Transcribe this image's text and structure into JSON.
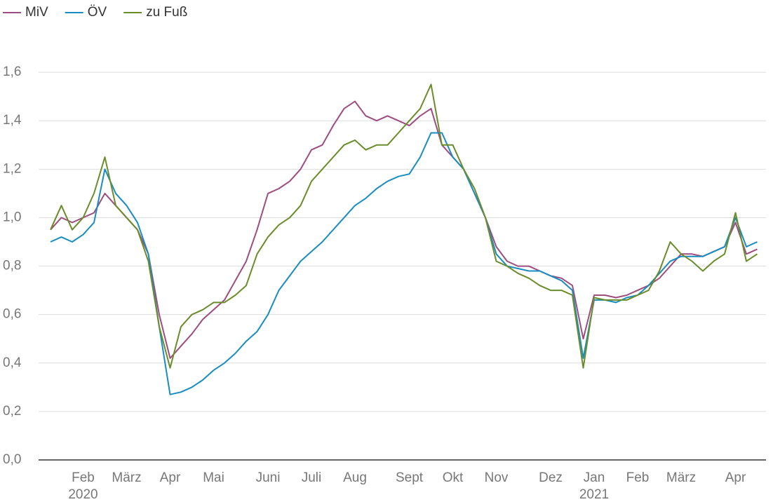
{
  "chart_data": {
    "type": "line",
    "categories": [
      null,
      null,
      null,
      {
        "label": "Feb",
        "year": "2020"
      },
      null,
      null,
      null,
      "März",
      null,
      null,
      null,
      "Apr",
      null,
      null,
      null,
      "Mai",
      null,
      null,
      null,
      null,
      "Juni",
      null,
      null,
      null,
      "Juli",
      null,
      null,
      null,
      "Aug",
      null,
      null,
      null,
      null,
      "Sept",
      null,
      null,
      null,
      "Okt",
      null,
      null,
      null,
      "Nov",
      null,
      null,
      null,
      null,
      "Dez",
      null,
      null,
      null,
      {
        "label": "Jan",
        "year": "2021"
      },
      null,
      null,
      null,
      "Feb",
      null,
      null,
      null,
      "März",
      null,
      null,
      null,
      null,
      "Apr",
      null,
      null
    ],
    "series": [
      {
        "name": "MiV",
        "color": "#9e4d7f",
        "values": [
          0.95,
          1.0,
          0.98,
          1.0,
          1.02,
          1.1,
          1.05,
          1.0,
          0.95,
          0.85,
          0.6,
          0.42,
          0.47,
          0.52,
          0.58,
          0.62,
          0.66,
          0.74,
          0.82,
          0.95,
          1.1,
          1.12,
          1.15,
          1.2,
          1.28,
          1.3,
          1.38,
          1.45,
          1.48,
          1.42,
          1.4,
          1.42,
          1.4,
          1.38,
          1.42,
          1.45,
          1.3,
          1.25,
          1.2,
          1.1,
          1.0,
          0.88,
          0.82,
          0.8,
          0.8,
          0.78,
          0.76,
          0.75,
          0.72,
          0.5,
          0.68,
          0.68,
          0.67,
          0.68,
          0.7,
          0.72,
          0.75,
          0.8,
          0.85,
          0.85,
          0.84,
          0.86,
          0.88,
          0.98,
          0.85,
          0.87
        ]
      },
      {
        "name": "ÖV",
        "color": "#1a8dc0",
        "values": [
          0.9,
          0.92,
          0.9,
          0.93,
          0.98,
          1.2,
          1.1,
          1.05,
          0.98,
          0.85,
          0.55,
          0.27,
          0.28,
          0.3,
          0.33,
          0.37,
          0.4,
          0.44,
          0.49,
          0.53,
          0.6,
          0.7,
          0.76,
          0.82,
          0.86,
          0.9,
          0.95,
          1.0,
          1.05,
          1.08,
          1.12,
          1.15,
          1.17,
          1.18,
          1.25,
          1.35,
          1.35,
          1.25,
          1.2,
          1.1,
          1.0,
          0.85,
          0.8,
          0.79,
          0.78,
          0.78,
          0.76,
          0.74,
          0.7,
          0.42,
          0.66,
          0.66,
          0.65,
          0.67,
          0.68,
          0.72,
          0.77,
          0.82,
          0.84,
          0.84,
          0.84,
          0.86,
          0.88,
          1.0,
          0.88,
          0.9
        ]
      },
      {
        "name": "zu Fuß",
        "color": "#6b8c2a",
        "values": [
          0.95,
          1.05,
          0.95,
          1.0,
          1.1,
          1.25,
          1.05,
          1.0,
          0.95,
          0.82,
          0.55,
          0.38,
          0.55,
          0.6,
          0.62,
          0.65,
          0.65,
          0.68,
          0.72,
          0.85,
          0.92,
          0.97,
          1.0,
          1.05,
          1.15,
          1.2,
          1.25,
          1.3,
          1.32,
          1.28,
          1.3,
          1.3,
          1.35,
          1.4,
          1.45,
          1.55,
          1.3,
          1.3,
          1.2,
          1.12,
          1.0,
          0.82,
          0.8,
          0.77,
          0.75,
          0.72,
          0.7,
          0.7,
          0.68,
          0.38,
          0.67,
          0.66,
          0.66,
          0.66,
          0.68,
          0.7,
          0.78,
          0.9,
          0.85,
          0.82,
          0.78,
          0.82,
          0.85,
          1.02,
          0.82,
          0.85
        ]
      }
    ],
    "ylim": [
      0,
      1.8
    ],
    "yticks": [
      {
        "value": 0,
        "label": "0,0"
      },
      {
        "value": 0.2,
        "label": "0,2"
      },
      {
        "value": 0.4,
        "label": "0,4"
      },
      {
        "value": 0.6,
        "label": "0,6"
      },
      {
        "value": 0.8,
        "label": "0,8"
      },
      {
        "value": 1.0,
        "label": "1,0"
      },
      {
        "value": 1.2,
        "label": "1,2"
      },
      {
        "value": 1.4,
        "label": "1,4"
      },
      {
        "value": 1.6,
        "label": "1,6"
      }
    ],
    "grid": true,
    "legend": "top-left"
  }
}
